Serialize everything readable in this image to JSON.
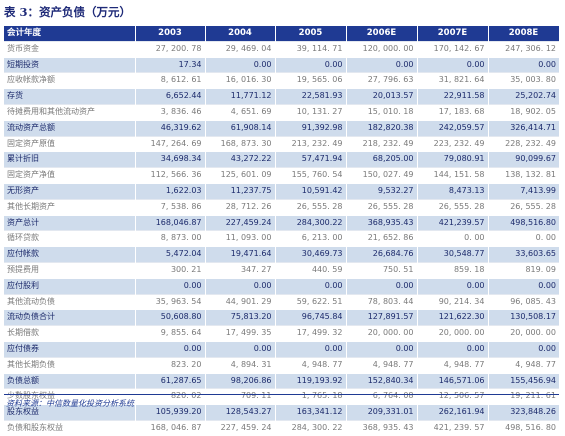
{
  "title": "表 3：资产负债（万元）",
  "table": {
    "columns": [
      "会计年度",
      "2003",
      "2004",
      "2005",
      "2006E",
      "2007E",
      "2008E"
    ],
    "rows": [
      {
        "style": "plain",
        "cells": [
          "货币资金",
          "27, 200. 78",
          "29, 469. 04",
          "39, 114. 71",
          "120, 000. 00",
          "170, 142. 67",
          "247, 306. 12"
        ]
      },
      {
        "style": "shade",
        "cells": [
          "短期投资",
          "17.34",
          "0.00",
          "0.00",
          "0.00",
          "0.00",
          "0.00"
        ]
      },
      {
        "style": "plain",
        "cells": [
          "应收帐款净额",
          "8, 612. 61",
          "16, 016. 30",
          "19, 565. 06",
          "27, 796. 63",
          "31, 821. 64",
          "35, 003. 80"
        ]
      },
      {
        "style": "shade",
        "cells": [
          "存货",
          "6,652.44",
          "11,771.12",
          "22,581.93",
          "20,013.57",
          "22,911.58",
          "25,202.74"
        ]
      },
      {
        "style": "plain",
        "cells": [
          "待摊费用和其他流动资产",
          "3, 836. 46",
          "4, 651. 69",
          "10, 131. 27",
          "15, 010. 18",
          "17, 183. 68",
          "18, 902. 05"
        ]
      },
      {
        "style": "shade",
        "cells": [
          "流动资产总额",
          "46,319.62",
          "61,908.14",
          "91,392.98",
          "182,820.38",
          "242,059.57",
          "326,414.71"
        ]
      },
      {
        "style": "plain",
        "cells": [
          "固定资产原值",
          "147, 264. 69",
          "168, 873. 30",
          "213, 232. 49",
          "218, 232. 49",
          "223, 232. 49",
          "228, 232. 49"
        ]
      },
      {
        "style": "shade",
        "cells": [
          "累计折旧",
          "34,698.34",
          "43,272.22",
          "57,471.94",
          "68,205.00",
          "79,080.91",
          "90,099.67"
        ]
      },
      {
        "style": "plain",
        "cells": [
          "固定资产净值",
          "112, 566. 36",
          "125, 601. 09",
          "155, 760. 54",
          "150, 027. 49",
          "144, 151. 58",
          "138, 132. 81"
        ]
      },
      {
        "style": "shade",
        "cells": [
          "无形资产",
          "1,622.03",
          "11,237.75",
          "10,591.42",
          "9,532.27",
          "8,473.13",
          "7,413.99"
        ]
      },
      {
        "style": "plain",
        "cells": [
          "其他长期资产",
          "7, 538. 86",
          "28, 712. 26",
          "26, 555. 28",
          "26, 555. 28",
          "26, 555. 28",
          "26, 555. 28"
        ]
      },
      {
        "style": "shade",
        "cells": [
          "资产总计",
          "168,046.87",
          "227,459.24",
          "284,300.22",
          "368,935.43",
          "421,239.57",
          "498,516.80"
        ]
      },
      {
        "style": "plain",
        "cells": [
          "循环贷款",
          "8, 873. 00",
          "11, 093. 00",
          "6, 213. 00",
          "21, 652. 86",
          "0. 00",
          "0. 00"
        ]
      },
      {
        "style": "shade",
        "cells": [
          "应付帐款",
          "5,472.04",
          "19,471.64",
          "30,469.73",
          "26,684.76",
          "30,548.77",
          "33,603.65"
        ]
      },
      {
        "style": "plain",
        "cells": [
          "预提费用",
          "300. 21",
          "347. 27",
          "440. 59",
          "750. 51",
          "859. 18",
          "819. 09"
        ]
      },
      {
        "style": "shade",
        "cells": [
          "应付股利",
          "0.00",
          "0.00",
          "0.00",
          "0.00",
          "0.00",
          "0.00"
        ]
      },
      {
        "style": "plain",
        "cells": [
          "其他流动负债",
          "35, 963. 54",
          "44, 901. 29",
          "59, 622. 51",
          "78, 803. 44",
          "90, 214. 34",
          "96, 085. 43"
        ]
      },
      {
        "style": "shade",
        "cells": [
          "流动负债合计",
          "50,608.80",
          "75,813.20",
          "96,745.84",
          "127,891.57",
          "121,622.30",
          "130,508.17"
        ]
      },
      {
        "style": "plain",
        "cells": [
          "长期借款",
          "9, 855. 64",
          "17, 499. 35",
          "17, 499. 32",
          "20, 000. 00",
          "20, 000. 00",
          "20, 000. 00"
        ]
      },
      {
        "style": "shade",
        "cells": [
          "应付债券",
          "0.00",
          "0.00",
          "0.00",
          "0.00",
          "0.00",
          "0.00"
        ]
      },
      {
        "style": "plain",
        "cells": [
          "其他长期负债",
          "823. 20",
          "4, 894. 31",
          "4, 948. 77",
          "4, 948. 77",
          "4, 948. 77",
          "4, 948. 77"
        ]
      },
      {
        "style": "shade",
        "cells": [
          "负债总额",
          "61,287.65",
          "98,206.86",
          "119,193.92",
          "152,840.34",
          "146,571.06",
          "155,456.94"
        ]
      },
      {
        "style": "plain",
        "cells": [
          "少数股东权益",
          "820. 02",
          "709. 11",
          "1, 765. 18",
          "6, 764. 08",
          "12, 506. 57",
          "19, 211. 61"
        ]
      },
      {
        "style": "shade",
        "cells": [
          "股东权益",
          "105,939.20",
          "128,543.27",
          "163,341.12",
          "209,331.01",
          "262,161.94",
          "323,848.26"
        ]
      },
      {
        "style": "plain",
        "cells": [
          "负债和股东权益",
          "168, 046. 87",
          "227, 459. 24",
          "284, 300. 22",
          "368, 935. 43",
          "421, 239. 57",
          "498, 516. 80"
        ]
      }
    ]
  },
  "source": "资料来源：中信数量化投资分析系统"
}
